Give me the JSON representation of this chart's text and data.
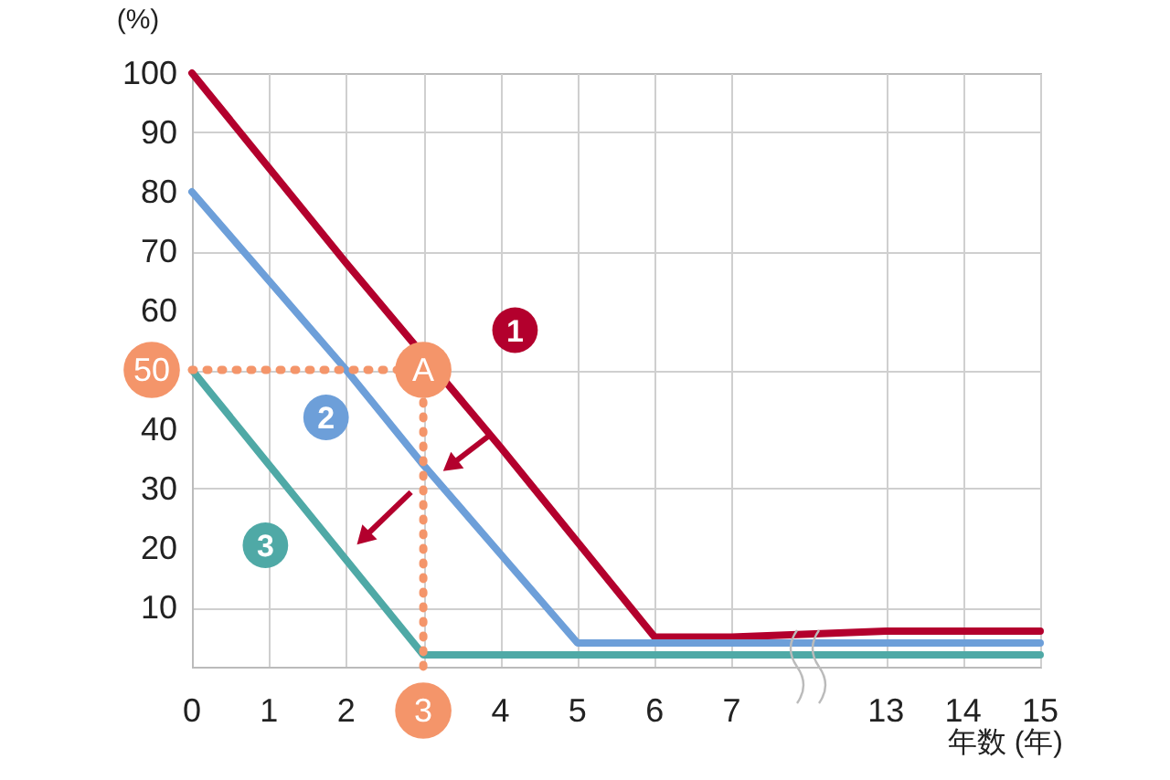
{
  "chart_data": {
    "type": "line",
    "ylabel": "(%)",
    "xlabel": "年数 (年)",
    "categories": [
      "0",
      "1",
      "2",
      "3",
      "4",
      "5",
      "6",
      "7",
      null,
      "13",
      "14",
      "15"
    ],
    "series": [
      {
        "name": "1",
        "color": "#b3002d",
        "values": [
          100,
          84,
          68,
          null,
          37,
          21,
          5,
          5,
          null,
          6,
          6,
          6
        ]
      },
      {
        "name": "2",
        "color": "#6d9fd9",
        "values": [
          80,
          65,
          50,
          34,
          19,
          4,
          4,
          4,
          null,
          4,
          4,
          4
        ]
      },
      {
        "name": "3",
        "color": "#4fa9a6",
        "values": [
          50,
          34,
          18,
          2,
          2,
          2,
          2,
          2,
          null,
          2,
          2,
          2
        ]
      },
      {
        "color": "#f4956a",
        "x": [
          "0",
          "3",
          "3"
        ],
        "values": [
          50,
          50,
          0
        ],
        "line_style": "dotted"
      }
    ],
    "annotations": [
      {
        "text": "A",
        "x": "3",
        "y": 50
      }
    ],
    "ylim": [
      0,
      100
    ],
    "yticks": [
      10,
      20,
      30,
      40,
      50,
      60,
      70,
      80,
      90,
      100
    ],
    "grid": true,
    "line_style": "solid"
  }
}
